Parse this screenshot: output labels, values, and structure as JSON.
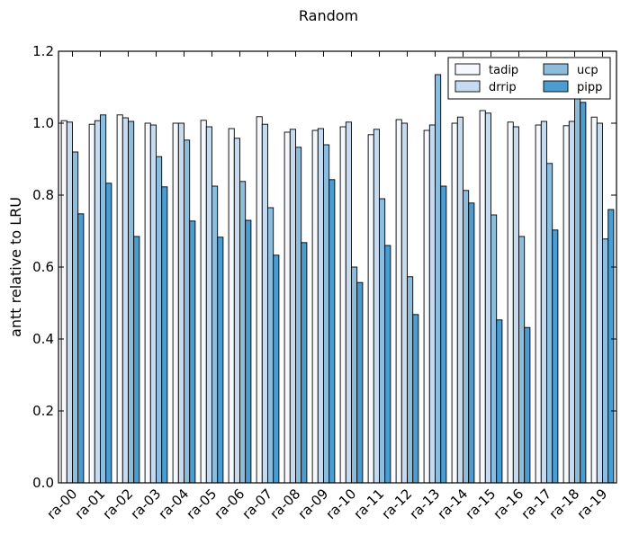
{
  "chart_data": {
    "type": "bar",
    "title": "Random",
    "xlabel": "",
    "ylabel": "antt relative to LRU",
    "ylim": [
      0,
      1.2
    ],
    "yticks": [
      "0.0",
      "0.2",
      "0.4",
      "0.6",
      "0.8",
      "1.0",
      "1.2"
    ],
    "legend_position": "top-right",
    "legend_columns": 2,
    "grid": false,
    "categories": [
      "ra-00",
      "ra-01",
      "ra-02",
      "ra-03",
      "ra-04",
      "ra-05",
      "ra-06",
      "ra-07",
      "ra-08",
      "ra-09",
      "ra-10",
      "ra-11",
      "ra-12",
      "ra-13",
      "ra-14",
      "ra-15",
      "ra-16",
      "ra-17",
      "ra-18",
      "ra-19"
    ],
    "series": [
      {
        "name": "tadip",
        "color": "#f5f9fd",
        "values": [
          1.007,
          0.997,
          1.023,
          1.0,
          1.0,
          1.008,
          0.985,
          1.018,
          0.975,
          0.98,
          0.99,
          0.968,
          1.01,
          0.98,
          1.0,
          1.035,
          1.003,
          0.995,
          0.993,
          1.017
        ]
      },
      {
        "name": "drrip",
        "color": "#c6dbef",
        "values": [
          1.003,
          1.007,
          1.015,
          0.995,
          1.0,
          0.99,
          0.958,
          0.997,
          0.983,
          0.985,
          1.003,
          0.983,
          1.0,
          0.995,
          1.017,
          1.028,
          0.99,
          1.005,
          1.005,
          1.0
        ]
      },
      {
        "name": "ucp",
        "color": "#8cbddc",
        "values": [
          0.92,
          1.023,
          1.005,
          0.907,
          0.953,
          0.825,
          0.838,
          0.765,
          0.933,
          0.94,
          0.6,
          0.79,
          0.573,
          1.135,
          0.813,
          0.745,
          0.685,
          0.888,
          1.07,
          0.678
        ]
      },
      {
        "name": "pipp",
        "color": "#4b9cd0",
        "values": [
          0.748,
          0.833,
          0.685,
          0.823,
          0.728,
          0.683,
          0.73,
          0.633,
          0.668,
          0.843,
          0.557,
          0.66,
          0.468,
          0.825,
          0.778,
          0.453,
          0.432,
          0.703,
          1.058,
          0.76
        ]
      }
    ]
  }
}
